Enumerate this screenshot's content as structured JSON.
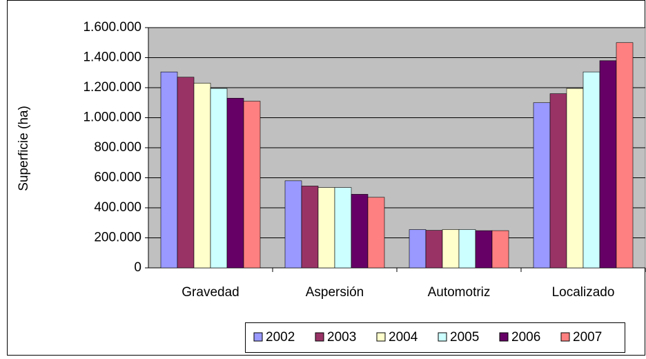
{
  "chart_data": {
    "type": "bar",
    "y_label": "Superficie (ha)",
    "categories": [
      "Gravedad",
      "Aspersión",
      "Automotriz",
      "Localizado"
    ],
    "series": [
      {
        "name": "2002",
        "color": "#9999ff",
        "values": [
          1305000,
          580000,
          255000,
          1100000
        ]
      },
      {
        "name": "2003",
        "color": "#993366",
        "values": [
          1270000,
          545000,
          250000,
          1160000
        ]
      },
      {
        "name": "2004",
        "color": "#ffffcc",
        "values": [
          1230000,
          535000,
          255000,
          1195000
        ]
      },
      {
        "name": "2005",
        "color": "#ccffff",
        "values": [
          1195000,
          535000,
          255000,
          1305000
        ]
      },
      {
        "name": "2006",
        "color": "#660066",
        "values": [
          1130000,
          490000,
          248000,
          1380000
        ]
      },
      {
        "name": "2007",
        "color": "#ff8080",
        "values": [
          1110000,
          470000,
          248000,
          1500000
        ]
      }
    ],
    "ylim": [
      0,
      1600000
    ],
    "yticks": [
      0,
      {
        "value": 200000,
        "label": "200.000"
      },
      {
        "value": 400000,
        "label": "400.000"
      },
      {
        "value": 600000,
        "label": "600.000"
      },
      {
        "value": 800000,
        "label": "800.000"
      },
      {
        "value": 1000000,
        "label": "1.000.000"
      },
      {
        "value": 1200000,
        "label": "1.200.000"
      },
      {
        "value": 1400000,
        "label": "1.400.000"
      },
      {
        "value": 1600000,
        "label": "1.600.000"
      }
    ],
    "grid": true,
    "legend": "bottom",
    "plot_color": "#c0c0c0"
  }
}
